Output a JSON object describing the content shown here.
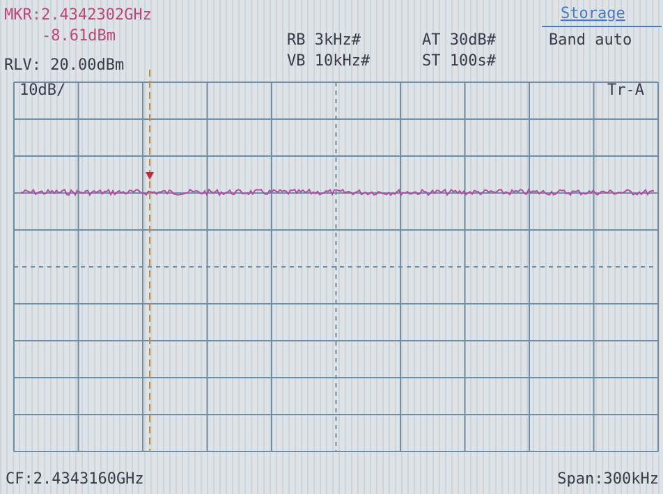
{
  "marker": {
    "frequency": "MKR:2.4342302GHz",
    "level": "-8.61dBm"
  },
  "reference_level": "RLV: 20.00dBm",
  "settings": {
    "rbw": "RB 3kHz#",
    "vbw": "VB 10kHz#",
    "attenuation": "AT 30dB#",
    "sweep_time": "ST 100s#"
  },
  "menu": {
    "title": "Storage",
    "item": "Band auto"
  },
  "scale": "10dB/",
  "trace": "Tr-A",
  "center_frequency": "CF:2.4343160GHz",
  "span": "Span:300kHz"
}
